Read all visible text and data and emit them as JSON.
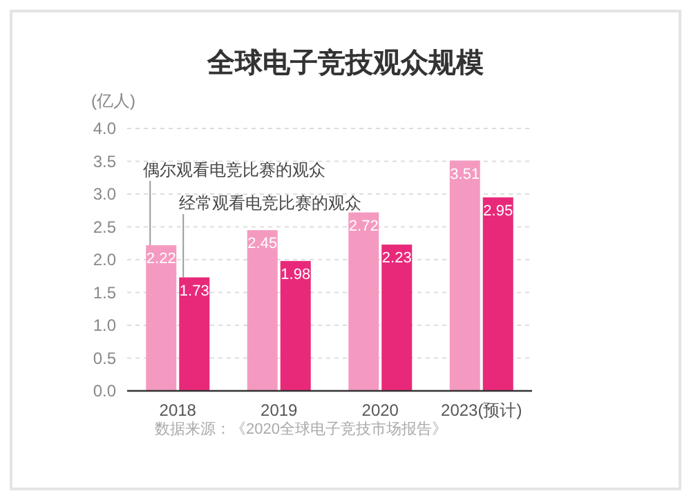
{
  "chart_data": {
    "type": "bar",
    "title": "全球电子竞技观众规模",
    "ylabel": "(亿人)",
    "categories": [
      "2018",
      "2019",
      "2020",
      "2023(预计)"
    ],
    "series": [
      {
        "name": "偶尔观看电竞比赛的观众",
        "color": "#f49ac1",
        "values": [
          2.22,
          2.45,
          2.72,
          3.51
        ]
      },
      {
        "name": "经常观看电竞比赛的观众",
        "color": "#e8297a",
        "values": [
          1.73,
          1.98,
          2.23,
          2.95
        ]
      }
    ],
    "ylim": [
      0,
      4
    ],
    "yticks": [
      {
        "value": 0,
        "label": "0.0"
      },
      {
        "value": 0.5,
        "label": "0.5"
      },
      {
        "value": 1,
        "label": "1.0"
      },
      {
        "value": 1.5,
        "label": "1.5"
      },
      {
        "value": 2,
        "label": "2.0"
      },
      {
        "value": 2.5,
        "label": "2.5"
      },
      {
        "value": 3,
        "label": "3.0"
      },
      {
        "value": 3.5,
        "label": "3.5"
      },
      {
        "value": 4,
        "label": "4.0"
      }
    ],
    "grid": "y",
    "data_labels": true,
    "annotations": [
      "数据来源：《2020全球电子竞技市场报告》"
    ]
  }
}
